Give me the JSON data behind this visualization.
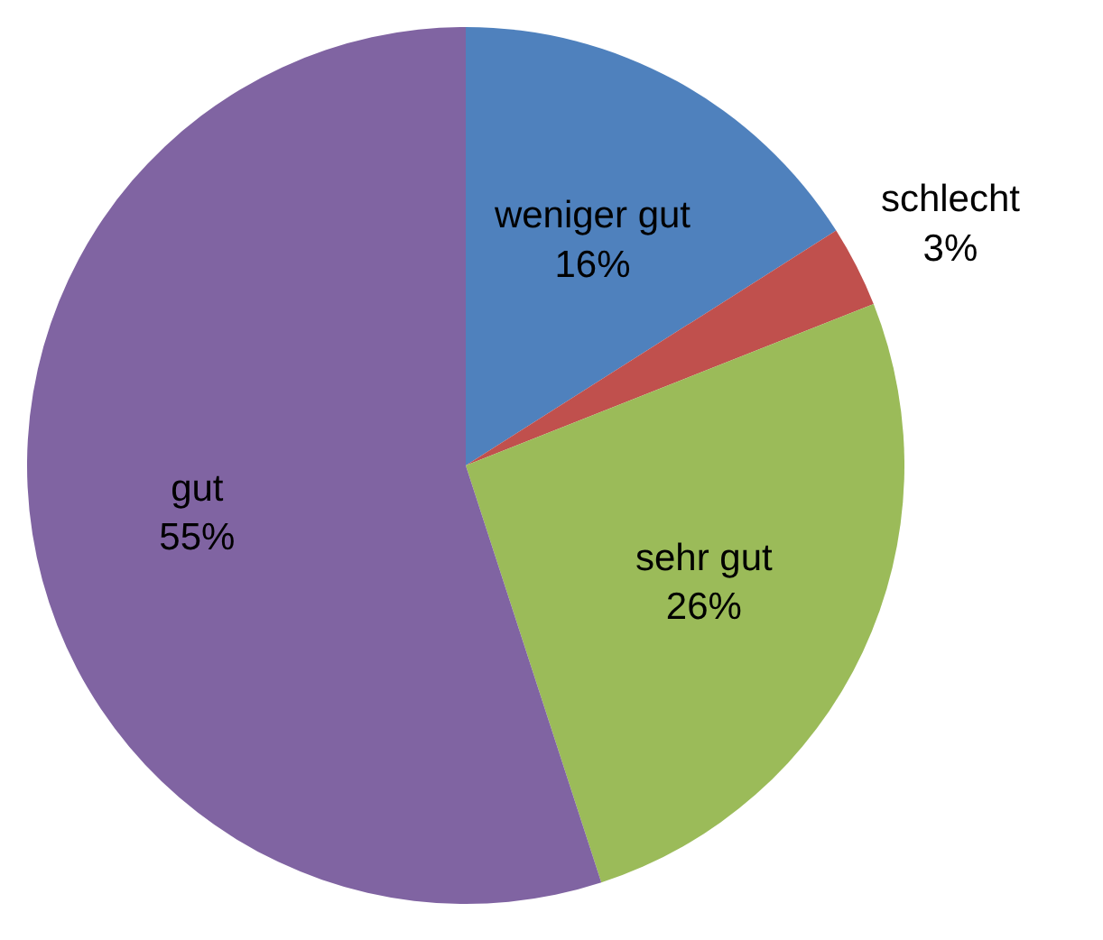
{
  "chart_data": {
    "type": "pie",
    "categories": [
      "weniger gut",
      "schlecht",
      "sehr gut",
      "gut"
    ],
    "values": [
      16,
      3,
      26,
      55
    ],
    "value_labels": [
      "16%",
      "3%",
      "26%",
      "55%"
    ],
    "colors": [
      "#4f81bd",
      "#c0504d",
      "#9bbb59",
      "#8064a2"
    ],
    "legend": false
  }
}
